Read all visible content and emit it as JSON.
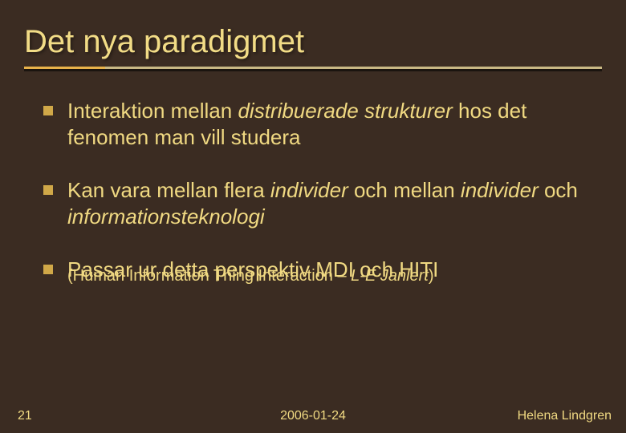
{
  "colors": {
    "background": "#3b2c22",
    "text": "#f0d982",
    "title": "#f2dc86",
    "bullet": "#d0a848",
    "rule_main": "#c9b884",
    "rule_accent": "#e8b24a",
    "rule_shadow": "#1a140f"
  },
  "fonts": {
    "title_size": 40,
    "body_size": 26,
    "sub_size": 20,
    "footer_size": 16
  },
  "layout": {
    "accent_width_pct": 14
  },
  "title": "Det nya paradigmet",
  "bullets": [
    {
      "runs": [
        {
          "text": "Interaktion mellan "
        },
        {
          "text": "distribuerade strukturer",
          "italic": true
        },
        {
          "text": " hos det fenomen man vill studera"
        }
      ]
    },
    {
      "runs": [
        {
          "text": "Kan vara mellan flera "
        },
        {
          "text": "individer",
          "italic": true
        },
        {
          "text": " och mellan "
        },
        {
          "text": "individer",
          "italic": true
        },
        {
          "text": " och "
        },
        {
          "text": "informationsteknologi",
          "italic": true
        }
      ]
    },
    {
      "runs": [
        {
          "text": "Passar ur detta perspektiv MDI och HITI"
        }
      ],
      "sub_runs": [
        {
          "text": "(Human Information Thing Interaction – "
        },
        {
          "text": "L-E Janlert",
          "italic": true
        },
        {
          "text": ")"
        }
      ]
    }
  ],
  "footer": {
    "slide_number": "21",
    "date": "2006-01-24",
    "author": "Helena Lindgren"
  }
}
